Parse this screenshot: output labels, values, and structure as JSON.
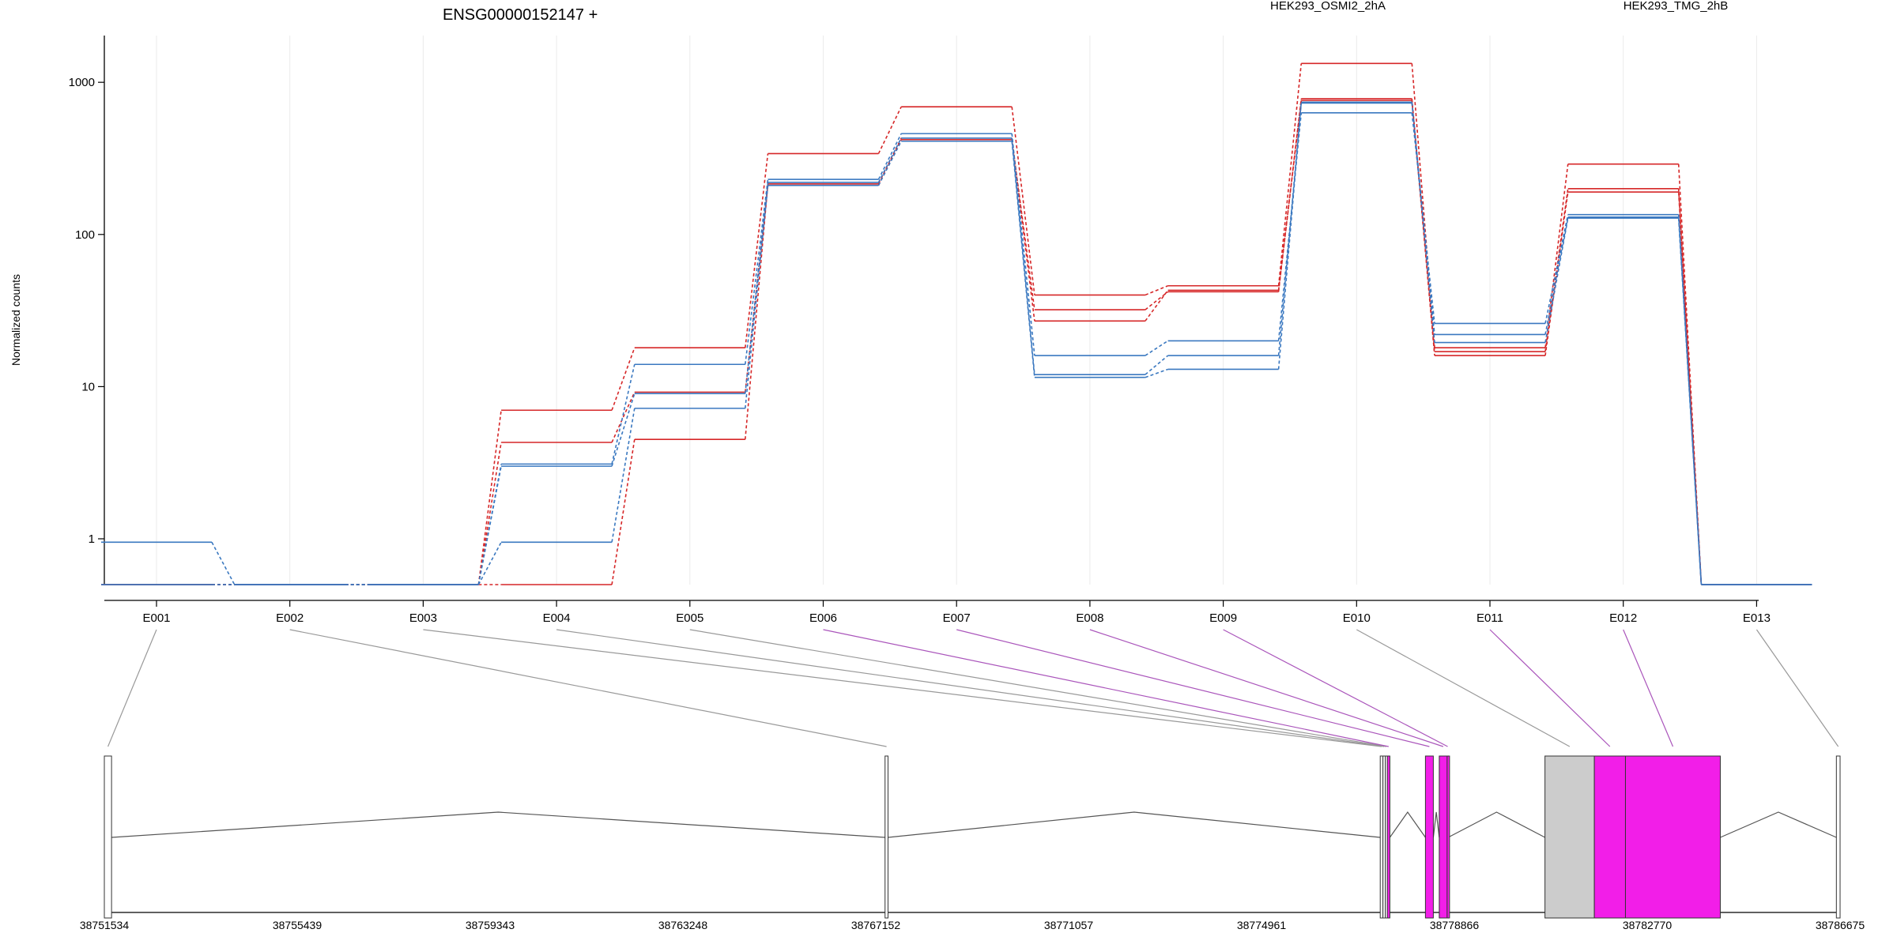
{
  "chart_data": {
    "type": "line",
    "title": "ENSG00000152147 +",
    "ylabel": "Normalized counts",
    "yscale": "log",
    "ylim": [
      0.5,
      1800
    ],
    "yticks": [
      1,
      10,
      100,
      1000
    ],
    "ytick_labels": [
      "1",
      "10",
      "100",
      "1000"
    ],
    "categories": [
      "E001",
      "E002",
      "E003",
      "E004",
      "E005",
      "E006",
      "E007",
      "E008",
      "E009",
      "E010",
      "E011",
      "E012",
      "E013"
    ],
    "grid": "vertical",
    "legend": [
      {
        "label": "HEK293_OSMI2_2hA",
        "color": "#d62728"
      },
      {
        "label": "HEK293_TMG_2hB",
        "color": "#3a78c0"
      }
    ],
    "series": [
      {
        "group": "HEK293_OSMI2_2hA",
        "color": "#d62728",
        "values": [
          0.5,
          0.5,
          0.5,
          7,
          18,
          340,
          690,
          40,
          46,
          1330,
          18,
          290,
          0.5
        ]
      },
      {
        "group": "HEK293_OSMI2_2hA",
        "color": "#d62728",
        "values": [
          0.5,
          0.5,
          0.5,
          4.3,
          9.2,
          210,
          420,
          32,
          42,
          780,
          17,
          200,
          0.5
        ]
      },
      {
        "group": "HEK293_OSMI2_2hA",
        "color": "#d62728",
        "values": [
          0.5,
          0.5,
          0.5,
          0.5,
          4.5,
          215,
          430,
          27,
          43,
          760,
          16,
          190,
          0.5
        ]
      },
      {
        "group": "HEK293_TMG_2hB",
        "color": "#3a78c0",
        "values": [
          0.95,
          0.5,
          0.5,
          3.1,
          14,
          230,
          460,
          16,
          20,
          630,
          26,
          135,
          0.5
        ]
      },
      {
        "group": "HEK293_TMG_2hB",
        "color": "#3a78c0",
        "values": [
          0.5,
          0.5,
          0.5,
          3,
          9,
          220,
          430,
          12,
          16,
          740,
          22,
          130,
          0.5
        ]
      },
      {
        "group": "HEK293_TMG_2hB",
        "color": "#3a78c0",
        "values": [
          0.5,
          0.5,
          0.5,
          0.95,
          7.2,
          210,
          410,
          11.5,
          13,
          730,
          19.5,
          128,
          0.5
        ]
      }
    ],
    "gene_model": {
      "coordinate_range": [
        38751534,
        38786675
      ],
      "coordinate_ticks": [
        "38751534",
        "38755439",
        "38759343",
        "38763248",
        "38767152",
        "38771057",
        "38774961",
        "38778866",
        "38782770",
        "38786675"
      ],
      "exons": [
        {
          "id": "E001",
          "start": 38751534,
          "end": 38751680,
          "color": "#ffffff",
          "link_color": "#999999"
        },
        {
          "id": "E002",
          "start": 38767340,
          "end": 38767400,
          "color": "#ffffff",
          "link_color": "#999999"
        },
        {
          "id": "E003",
          "start": 38777365,
          "end": 38777420,
          "color": "#ffffff",
          "link_color": "#999999"
        },
        {
          "id": "E004",
          "start": 38777420,
          "end": 38777470,
          "color": "#ffffff",
          "link_color": "#999999"
        },
        {
          "id": "E005",
          "start": 38777470,
          "end": 38777510,
          "color": "#ffffff",
          "link_color": "#999999"
        },
        {
          "id": "E006",
          "start": 38777510,
          "end": 38777560,
          "color": "#f21ee8",
          "link_color": "#aa55bb"
        },
        {
          "id": "E007",
          "start": 38778280,
          "end": 38778440,
          "color": "#f21ee8",
          "link_color": "#aa55bb"
        },
        {
          "id": "E008",
          "start": 38778560,
          "end": 38778720,
          "color": "#f21ee8",
          "link_color": "#aa55bb"
        },
        {
          "id": "E009",
          "start": 38778720,
          "end": 38778740,
          "color": "#f21ee8",
          "link_color": "#aa55bb"
        },
        {
          "id": "E010",
          "start": 38780700,
          "end": 38781700,
          "color": "#cccccc",
          "link_color": "#999999"
        },
        {
          "id": "E011",
          "start": 38781700,
          "end": 38782330,
          "color": "#f21ee8",
          "link_color": "#aa55bb"
        },
        {
          "id": "E012",
          "start": 38782330,
          "end": 38784250,
          "color": "#f21ee8",
          "link_color": "#aa55bb"
        },
        {
          "id": "E013",
          "start": 38786600,
          "end": 38786675,
          "color": "#ffffff",
          "link_color": "#999999"
        }
      ]
    }
  }
}
